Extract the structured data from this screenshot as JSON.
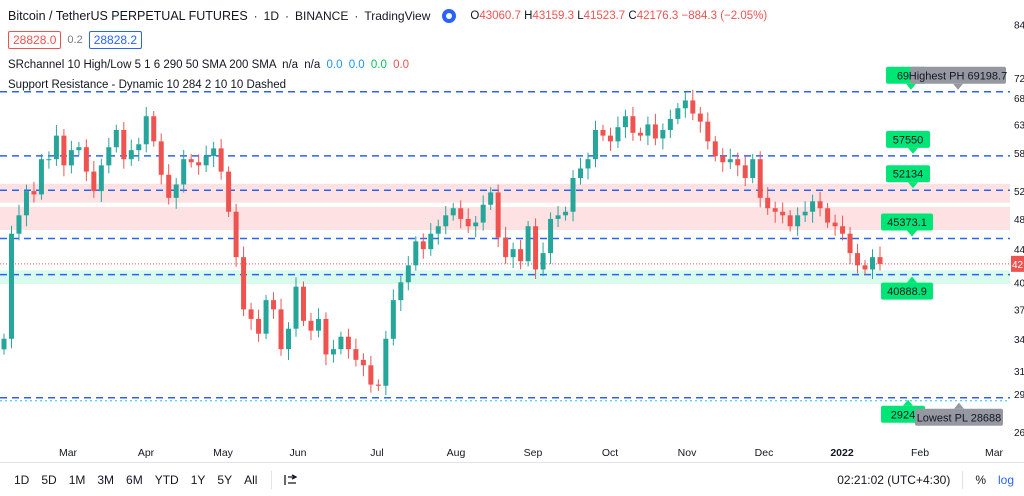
{
  "legend": {
    "symbol": "Bitcoin / TetherUS PERPETUAL FUTURES",
    "interval": "1D",
    "exchange": "BINANCE",
    "source": "TradingView",
    "separator": " · ",
    "ohlc": {
      "open_label": "O",
      "open": "43060.7",
      "high_label": "H",
      "high": "43159.3",
      "low_label": "L",
      "low": "41523.7",
      "close_label": "C",
      "close": "42176.3",
      "change": "−884.3 (−2.05%)"
    },
    "sell_price": "28828.0",
    "spread": "0.2",
    "buy_price": "28828.2",
    "indicator1": {
      "text": "SRchannel 10 High/Low 5 1 6 290 50 SMA 200 SMA",
      "na1": "n/a",
      "na2": "n/a",
      "v1": "0.0",
      "v2": "0.0",
      "v3": "0.0",
      "v4": "0.0"
    },
    "indicator2": "Support Resistance - Dynamic 10 284 2 10 10 Dashed"
  },
  "colors": {
    "up": "#26a69a",
    "down": "#ef5350",
    "level_line": "#2962ff",
    "label_green": "#00e676",
    "label_gray": "#9598a1",
    "zone_red": "rgba(242,54,69,0.15)",
    "zone_green": "rgba(0,230,118,0.15)"
  },
  "chart_data": {
    "type": "candlestick",
    "x_ticks": [
      "Mar",
      "Apr",
      "May",
      "Jun",
      "Jul",
      "Aug",
      "Sep",
      "Oct",
      "Nov",
      "Dec",
      "2022",
      "Feb",
      "Mar"
    ],
    "y_ticks": [
      "84",
      "72",
      "68",
      "63",
      "58",
      "52",
      "48",
      "44",
      "40",
      "37",
      "34",
      "31",
      "29",
      "26"
    ],
    "y_scale": "log",
    "close_series": [
      34000,
      46000,
      48500,
      52000,
      51500,
      57000,
      57000,
      61000,
      56000,
      58500,
      59000,
      55000,
      52000,
      56000,
      59000,
      62000,
      57000,
      58500,
      59500,
      64500,
      60000,
      54500,
      51000,
      53000,
      57000,
      56500,
      56000,
      57500,
      58800,
      55000,
      49000,
      43000,
      37000,
      36000,
      34500,
      38000,
      37000,
      33000,
      35000,
      39500,
      35800,
      34800,
      36000,
      32500,
      33000,
      34200,
      33000,
      32000,
      31500,
      29800,
      29700,
      34000,
      38000,
      40000,
      42000,
      45000,
      44000,
      46000,
      47000,
      48500,
      49500,
      48000,
      47000,
      47500,
      50000,
      51800,
      45500,
      43000,
      44000,
      42500,
      47000,
      41500,
      43500,
      48000,
      48500,
      49000,
      54000,
      55500,
      57000,
      62000,
      61000,
      60000,
      62500,
      64500,
      61500,
      61000,
      63000,
      60500,
      62000,
      64000,
      66000,
      67500,
      65000,
      63500,
      60000,
      57500,
      56500,
      57000,
      56000,
      54000,
      57000,
      51000,
      49500,
      49000,
      48500,
      47000,
      48500,
      49000,
      50500,
      49500,
      47500,
      47000,
      46000,
      43500,
      42000,
      41500,
      43000,
      42176
    ],
    "levels": [
      {
        "label": "Highest PH 69198.7",
        "value": 69198.7
      },
      {
        "label": "57550",
        "value": 57550
      },
      {
        "label": "52134",
        "value": 52134
      },
      {
        "label": "45373.1",
        "value": 45373.1
      },
      {
        "label": "40888.9",
        "value": 40888.9
      },
      {
        "label": "Lowest PL 28688",
        "value": 28688
      }
    ],
    "level_label_prefixes": [
      "691",
      "2924"
    ],
    "current_price_label": "42",
    "sr_zones": [
      {
        "type": "resistance",
        "range": [
          50300,
          53100
        ]
      },
      {
        "type": "resistance",
        "range": [
          46500,
          49700
        ]
      },
      {
        "type": "support",
        "range": [
          39800,
          41400
        ]
      }
    ]
  },
  "toolbar": {
    "timeframes": [
      "1D",
      "5D",
      "1M",
      "3M",
      "6M",
      "YTD",
      "1Y",
      "5Y",
      "All"
    ],
    "time": "02:21:02 (UTC+4:30)",
    "percent": "%",
    "log": "log"
  }
}
